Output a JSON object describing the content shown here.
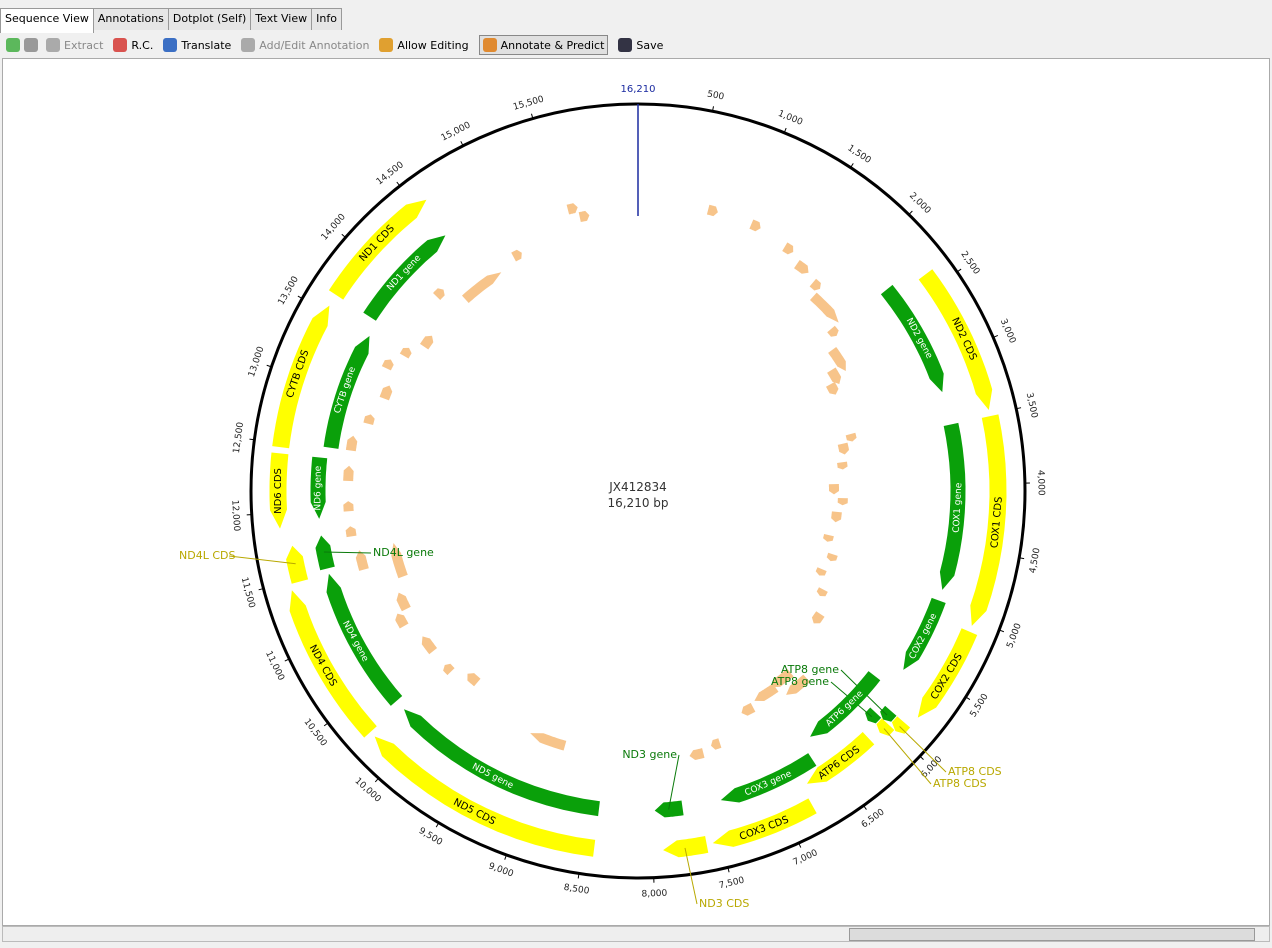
{
  "tabs": [
    "Sequence View",
    "Annotations",
    "Dotplot (Self)",
    "Text View",
    "Info"
  ],
  "toolbar": [
    "Extract",
    "R.C.",
    "Translate",
    "Add/Edit Annotation",
    "Allow Editing",
    "Annotate & Predict",
    "Save"
  ],
  "map": {
    "name": "JX412834",
    "length": "16,210 bp",
    "ticks": [
      500,
      {
        "value": 1000,
        "label": "1,000"
      },
      {
        "value": 1500,
        "label": "1,500"
      },
      {
        "value": 2000,
        "label": "2,000"
      },
      {
        "value": 2500,
        "label": "2,500"
      },
      {
        "value": 3000,
        "label": "3,000"
      },
      {
        "value": 3500,
        "label": "3,500"
      },
      {
        "value": 4000,
        "label": "4,000"
      },
      {
        "value": 4500,
        "label": "4,500"
      },
      {
        "value": 5000,
        "label": "5,000"
      },
      {
        "value": 5500,
        "label": "5,500"
      },
      {
        "value": 6000,
        "label": "6,000"
      },
      {
        "value": 6500,
        "label": "6,500"
      },
      {
        "value": 7000,
        "label": "7,000"
      },
      {
        "value": 7500,
        "label": "7,500"
      },
      {
        "value": 8000,
        "label": "8,000"
      },
      {
        "value": 8500,
        "label": "8,500"
      },
      {
        "value": 9000,
        "label": "9,000"
      },
      {
        "value": 9500,
        "label": "9,500"
      },
      {
        "value": 10000,
        "label": "10,000"
      },
      {
        "value": 10500,
        "label": "10,500"
      },
      {
        "value": 11000,
        "label": "11,000"
      },
      {
        "value": 11500,
        "label": "11,500"
      },
      {
        "value": 12000,
        "label": "12,000"
      },
      {
        "value": 12500,
        "label": "12,500"
      },
      {
        "value": 13000,
        "label": "13,000"
      },
      {
        "value": 13500,
        "label": "13,500"
      },
      {
        "value": 14000,
        "label": "14,000"
      },
      {
        "value": 14500,
        "label": "14,500"
      },
      {
        "value": 15000,
        "label": "15,000"
      },
      {
        "value": 15500,
        "label": "15,500"
      },
      {
        "value": 16210,
        "label": "16,210"
      }
    ],
    "features": [
      "ND2 CDS",
      "COX1 CDS",
      "COX2 CDS",
      "ATP8 CDS",
      "ATP8 CDS",
      "ATP6 CDS",
      "COX3 CDS",
      "ND3 CDS",
      "ND5 CDS",
      "ND4 CDS",
      "ND4L CDS",
      "ND6 CDS",
      "CYTB CDS",
      "ND1 CDS",
      "ND2 gene",
      "COX1 gene",
      "COX2 gene",
      "ATP8 gene",
      "ATP8 gene",
      "ATP6 gene",
      "COX3 gene",
      "ND3 gene",
      "ND5 gene",
      "ND4 gene",
      "ND4L gene",
      "ND6 gene",
      "CYTB gene",
      "ND1 gene"
    ]
  }
}
